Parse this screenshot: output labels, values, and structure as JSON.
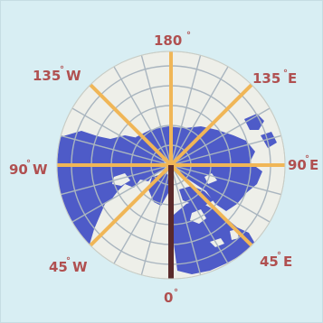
{
  "colors": {
    "background": "#d8eef3",
    "disc": "#eeefe9",
    "grid": "#a9b5bf",
    "land": "#4e5bc8",
    "meridian": "#f0b657",
    "prime_meridian": "#5a2a2a",
    "label": "#b05050"
  },
  "labels": {
    "north": {
      "text": "180",
      "deg": "°"
    },
    "north_east": {
      "text": "135",
      "deg": "°",
      "dir": "E"
    },
    "east": {
      "text": "90",
      "deg": "°",
      "dir": "E"
    },
    "south_east": {
      "text": "45",
      "deg": "°",
      "dir": "E"
    },
    "south": {
      "text": "0",
      "deg": "°"
    },
    "south_west": {
      "text": "45",
      "deg": "°",
      "dir": "W"
    },
    "west": {
      "text": "90",
      "deg": "°",
      "dir": "W"
    },
    "north_west": {
      "text": "135",
      "deg": "°",
      "dir": "W"
    }
  }
}
